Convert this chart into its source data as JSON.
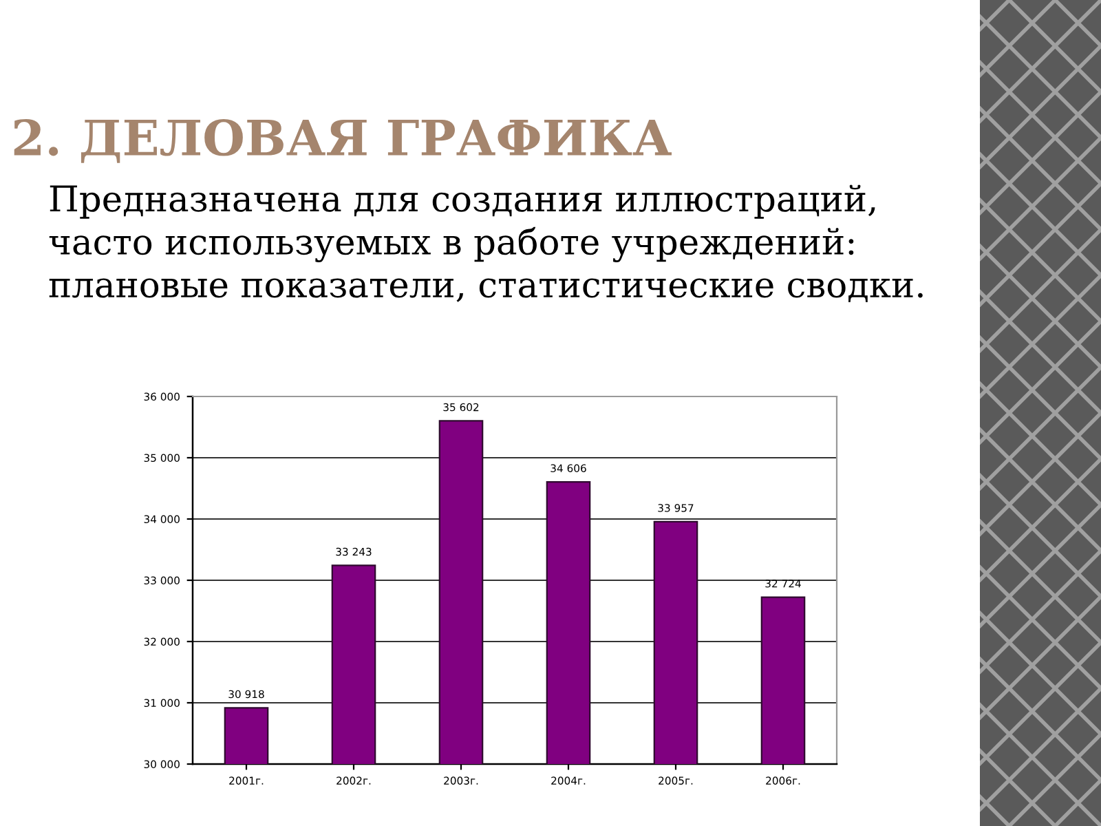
{
  "chart_data": {
    "type": "bar",
    "title": "2. ДЕЛОВАЯ ГРАФИКА",
    "subtitle": "Предназначена для создания иллюстраций,\nчасто используемых в работе учреждений:\nплановые показатели, статистические сводки.",
    "categories": [
      "2001г.",
      "2002г.",
      "2003г.",
      "2004г.",
      "2005г.",
      "2006г."
    ],
    "values": [
      30918,
      33243,
      35602,
      34606,
      33957,
      32724
    ],
    "value_labels": [
      "30 918",
      "33 243",
      "35 602",
      "34 606",
      "33 957",
      "32 724"
    ],
    "color": "#800080",
    "ylim": [
      30000,
      36000
    ],
    "yticks": [
      {
        "value": 30000,
        "label": "30 000"
      },
      {
        "value": 31000,
        "label": "31 000"
      },
      {
        "value": 32000,
        "label": "32 000"
      },
      {
        "value": 33000,
        "label": "33 000"
      },
      {
        "value": 34000,
        "label": "34 000"
      },
      {
        "value": 35000,
        "label": "35 000"
      },
      {
        "value": 36000,
        "label": "36 000"
      }
    ],
    "grid": "y"
  }
}
